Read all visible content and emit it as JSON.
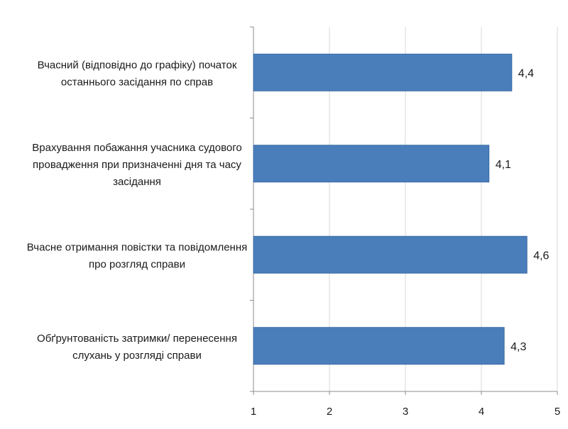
{
  "chart_data": {
    "type": "bar",
    "orientation": "horizontal",
    "title": "",
    "xlabel": "",
    "ylabel": "",
    "categories": [
      [
        "Вчасний (відповідно до графіку) початок",
        "останнього засідання по справ"
      ],
      [
        "Врахування побажання учасника судового",
        "провадження при призначенні дня та часу",
        "засідання"
      ],
      [
        "Вчасне отримання повістки та повідомлення",
        "про розгляд справи"
      ],
      [
        "Обґрунтованість затримки/ перенесення",
        "слухань у розгляді справи"
      ]
    ],
    "values": [
      4.4,
      4.1,
      4.6,
      4.3
    ],
    "value_labels": [
      "4,4",
      "4,1",
      "4,6",
      "4,3"
    ],
    "xlim": [
      1,
      5
    ],
    "x_ticks": [
      "1",
      "2",
      "3",
      "4",
      "5"
    ],
    "grid": true,
    "legend": "none",
    "bar_color": "#4a7ebb",
    "bar_edge_color": "#3a6aa3",
    "grid_color": "#d9d9d9",
    "axis_color": "#8c8c8c"
  }
}
